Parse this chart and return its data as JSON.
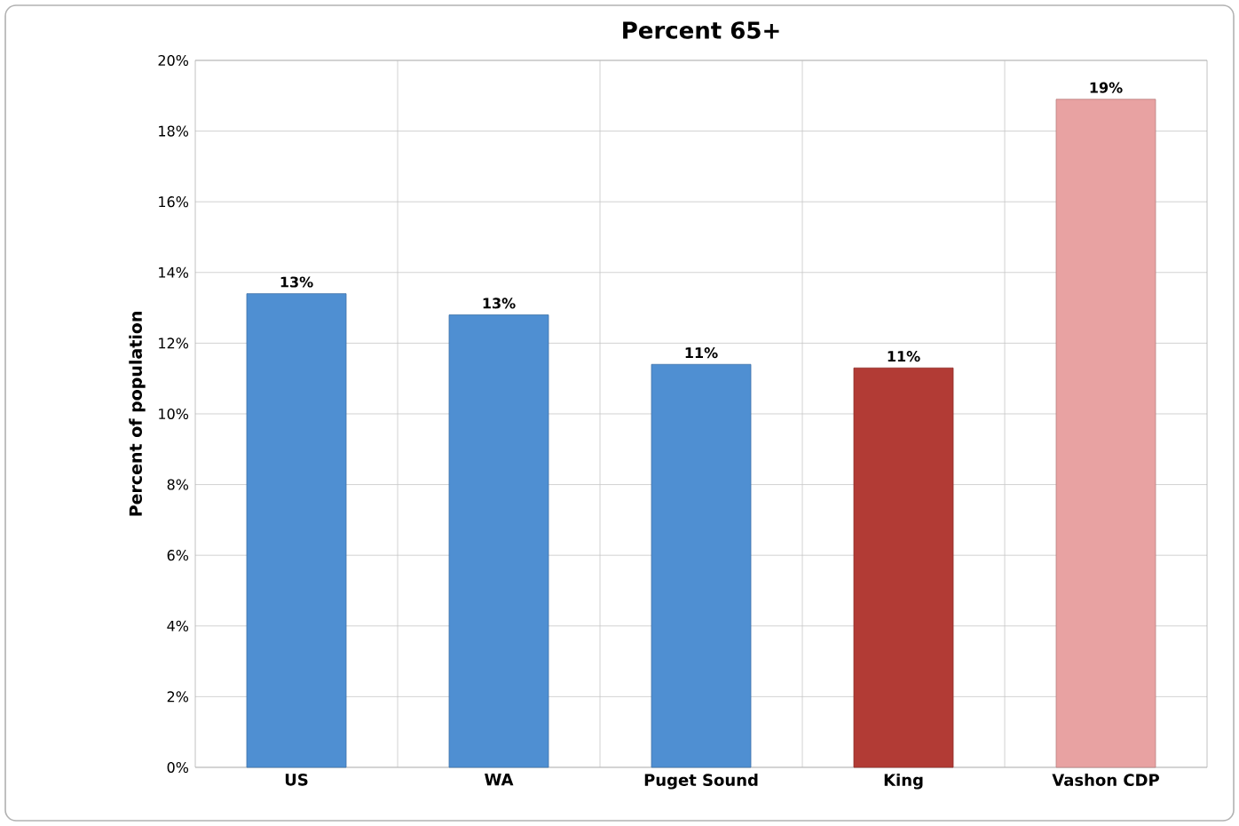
{
  "chart_data": {
    "type": "bar",
    "title": "Percent 65+",
    "ylabel": "Percent of population",
    "categories": [
      "US",
      "WA",
      "Puget Sound",
      "King",
      "Vashon CDP"
    ],
    "values": [
      13.4,
      12.8,
      11.4,
      11.3,
      18.9
    ],
    "colors": [
      "#4f8fd2",
      "#4f8fd2",
      "#4f8fd2",
      "#b23b35",
      "#e8a2a2"
    ],
    "value_labels": [
      "13%",
      "13%",
      "11%",
      "11%",
      "19%"
    ],
    "ylim": [
      0,
      20
    ],
    "yticks": [
      {
        "value": 0,
        "label": "0%"
      },
      {
        "value": 2,
        "label": "2%"
      },
      {
        "value": 4,
        "label": "4%"
      },
      {
        "value": 6,
        "label": "6%"
      },
      {
        "value": 8,
        "label": "8%"
      },
      {
        "value": 10,
        "label": "10%"
      },
      {
        "value": 12,
        "label": "12%"
      },
      {
        "value": 14,
        "label": "14%"
      },
      {
        "value": 16,
        "label": "16%"
      },
      {
        "value": 18,
        "label": "18%"
      },
      {
        "value": 20,
        "label": "20%"
      }
    ],
    "grid": true
  }
}
